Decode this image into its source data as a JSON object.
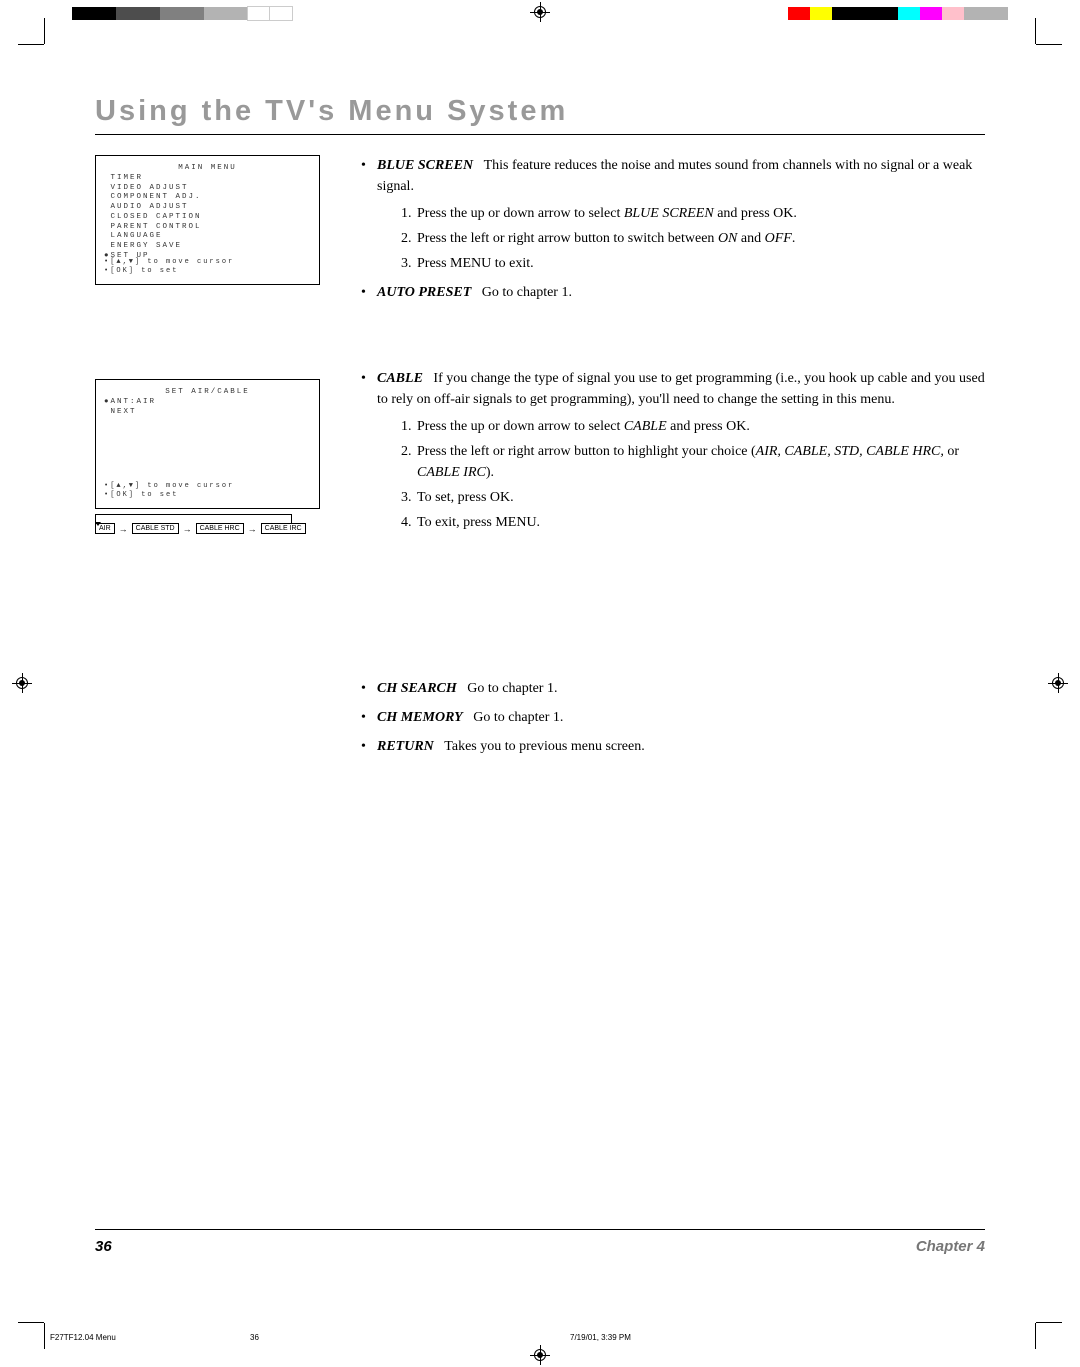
{
  "title": "Using the TV's Menu System",
  "colorbars": {
    "left": [
      "#000000",
      "#000000",
      "#4d4d4d",
      "#4d4d4d",
      "#808080",
      "#808080",
      "#b3b3b3",
      "#b3b3b3",
      "#ffffff",
      "#ffffff"
    ],
    "right": [
      "#ff0000",
      "#ffff00",
      "#000000",
      "#000000",
      "#000000",
      "#00ffff",
      "#ff00ff",
      "#ffc0cb",
      "#b3b3b3",
      "#b3b3b3"
    ]
  },
  "screen1": {
    "title": "MAIN MENU",
    "lines": " TIMER\n VIDEO ADJUST\n COMPONENT ADJ.\n AUDIO ADJUST\n CLOSED CAPTION\n PARENT CONTROL\n LANGUAGE\n ENERGY SAVE\n●SET UP",
    "foot": "•[▲,▼] to move cursor\n•[OK] to set"
  },
  "screen2": {
    "title": "SET AIR/CABLE",
    "lines": "●ANT:AIR\n NEXT",
    "foot": "•[▲,▼] to move cursor\n•[OK] to set"
  },
  "flow": {
    "b1": "AIR",
    "b2": "CABLE STD",
    "b3": "CABLE HRC",
    "b4": "CABLE IRC"
  },
  "c": {
    "blue": {
      "head": "BLUE SCREEN",
      "desc": "This feature reduces the noise and mutes sound from channels with no signal or a weak signal.",
      "s1a": "Press the up or down arrow to select ",
      "s1b": "BLUE SCREEN",
      "s1c": " and press OK.",
      "s2a": "Press the left or right arrow button to switch between ",
      "s2b": "ON",
      "s2c": " and ",
      "s2d": "OFF",
      "s2e": ".",
      "s3": "Press MENU to exit."
    },
    "auto": {
      "head": "AUTO PRESET",
      "desc": "Go to chapter 1."
    },
    "cable": {
      "head": "CABLE",
      "desc": "If you change the type of signal you use to get programming (i.e., you hook up cable and you used to rely on off-air signals to get programming), you'll need to change the setting in this menu.",
      "s1a": "Press the up or down arrow to select ",
      "s1b": "CABLE",
      "s1c": " and press OK.",
      "s2a": "Press the left or right arrow button to highlight your choice (",
      "s2b": "AIR, CABLE, STD, CABLE HRC,",
      "s2c": " or ",
      "s2d": "CABLE IRC",
      "s2e": ").",
      "s3": "To set, press OK.",
      "s4": "To exit, press MENU."
    },
    "chs": {
      "head": "CH SEARCH",
      "desc": "Go to chapter 1."
    },
    "chm": {
      "head": "CH MEMORY",
      "desc": "Go to chapter 1."
    },
    "ret": {
      "head": "RETURN",
      "desc": "Takes you to previous menu screen."
    }
  },
  "footer": {
    "page": "36",
    "chapter": "Chapter 4"
  },
  "meta": {
    "file": "F27TF12.04 Menu",
    "pg": "36",
    "ts": "7/19/01, 3:39 PM"
  }
}
